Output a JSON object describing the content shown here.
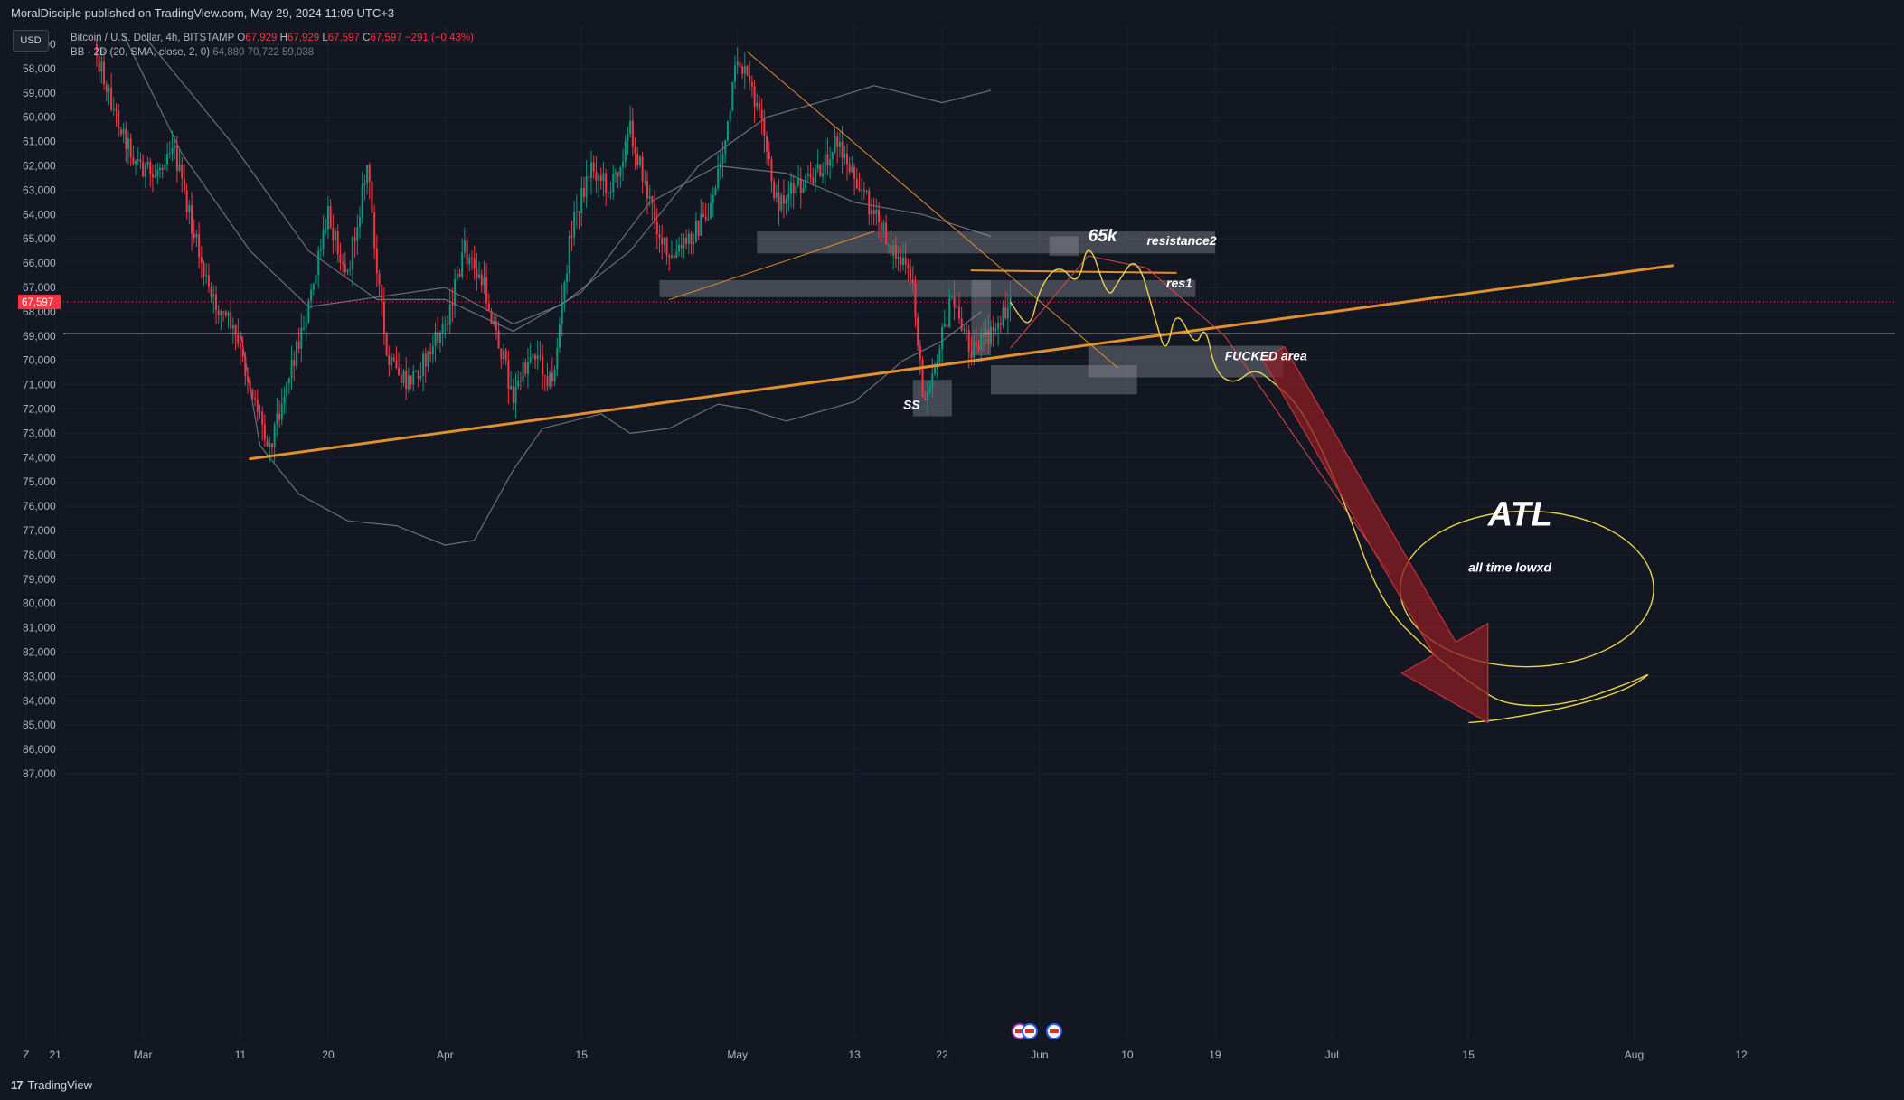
{
  "header": {
    "publisher_line": "MoralDisciple published on TradingView.com, May 29, 2024 11:09 UTC+3"
  },
  "footer": {
    "brand": "TradingView",
    "brand_mark": "17"
  },
  "currency_button": "USD",
  "legend": {
    "symbol": "Bitcoin / U.S. Dollar, 4h, BITSTAMP",
    "o_label": "O",
    "o_value": "67,929",
    "h_label": "H",
    "h_value": "67,929",
    "l_label": "L",
    "l_value": "67,597",
    "c_label": "C",
    "c_value": "67,597",
    "change": "−291 (−0.43%)",
    "bb_label": "BB · 2D (20, SMA, close, 2, 0)",
    "bb_upper": "64,880",
    "bb_basis": "70,722",
    "bb_lower": "59,038"
  },
  "colors": {
    "background": "#131722",
    "up_candle": "#089981",
    "down_candle": "#f23645",
    "trendline": "#e0902e",
    "drawing_yellow": "#e8d44d",
    "zone": "#9598a1",
    "arrow": "#8c1e24",
    "price_label_bg": "#f23645"
  },
  "chart_data": {
    "type": "candlestick",
    "symbol": "Bitcoin / U.S. Dollar",
    "interval": "4h",
    "exchange": "BITSTAMP",
    "y_axis": {
      "inverted": true,
      "ylim": [
        56600,
        87400
      ],
      "ticks": [
        57000,
        58000,
        59000,
        60000,
        61000,
        62000,
        63000,
        64000,
        65000,
        66000,
        67000,
        68000,
        69000,
        70000,
        71000,
        72000,
        73000,
        74000,
        75000,
        76000,
        77000,
        78000,
        79000,
        80000,
        81000,
        82000,
        83000,
        84000,
        85000,
        86000,
        87000
      ],
      "tick_labels": [
        "57,000",
        "58,000",
        "59,000",
        "60,000",
        "61,000",
        "62,000",
        "63,000",
        "64,000",
        "65,000",
        "66,000",
        "67,000",
        "68,000",
        "69,000",
        "70,000",
        "71,000",
        "72,000",
        "73,000",
        "74,000",
        "75,000",
        "76,000",
        "77,000",
        "78,000",
        "79,000",
        "80,000",
        "81,000",
        "82,000",
        "83,000",
        "84,000",
        "85,000",
        "86,000",
        "87,000"
      ]
    },
    "x_axis": {
      "start": "2024-02-17",
      "end": "2024-08-31",
      "tick_labels": [
        {
          "label": "Z",
          "date": "2024-02-18"
        },
        {
          "label": "21",
          "date": "2024-02-21"
        },
        {
          "label": "Mar",
          "date": "2024-03-01"
        },
        {
          "label": "11",
          "date": "2024-03-11"
        },
        {
          "label": "20",
          "date": "2024-03-20"
        },
        {
          "label": "Apr",
          "date": "2024-04-01"
        },
        {
          "label": "15",
          "date": "2024-04-15"
        },
        {
          "label": "May",
          "date": "2024-05-01"
        },
        {
          "label": "13",
          "date": "2024-05-13"
        },
        {
          "label": "22",
          "date": "2024-05-22"
        },
        {
          "label": "Jun",
          "date": "2024-06-01"
        },
        {
          "label": "10",
          "date": "2024-06-10"
        },
        {
          "label": "19",
          "date": "2024-06-19"
        },
        {
          "label": "Jul",
          "date": "2024-07-01"
        },
        {
          "label": "15",
          "date": "2024-07-15"
        },
        {
          "label": "Aug",
          "date": "2024-08-01"
        },
        {
          "label": "12",
          "date": "2024-08-12"
        }
      ]
    },
    "current_price": {
      "value": 67597,
      "label": "67,597"
    },
    "horizontal_line": 68900,
    "price_path": [
      [
        "2024-02-25",
        57000
      ],
      [
        "2024-02-27",
        59700
      ],
      [
        "2024-02-29",
        61600
      ],
      [
        "2024-03-02",
        62500
      ],
      [
        "2024-03-04",
        61000
      ],
      [
        "2024-03-06",
        64500
      ],
      [
        "2024-03-08",
        67500
      ],
      [
        "2024-03-10",
        68500
      ],
      [
        "2024-03-12",
        71000
      ],
      [
        "2024-03-14",
        73500
      ],
      [
        "2024-03-16",
        70500
      ],
      [
        "2024-03-18",
        67800
      ],
      [
        "2024-03-20",
        64000
      ],
      [
        "2024-03-22",
        66500
      ],
      [
        "2024-03-24",
        62000
      ],
      [
        "2024-03-26",
        70000
      ],
      [
        "2024-03-28",
        71000
      ],
      [
        "2024-03-30",
        70000
      ],
      [
        "2024-04-01",
        68500
      ],
      [
        "2024-04-03",
        65500
      ],
      [
        "2024-04-05",
        67000
      ],
      [
        "2024-04-08",
        71500
      ],
      [
        "2024-04-10",
        69500
      ],
      [
        "2024-04-12",
        71000
      ],
      [
        "2024-04-14",
        64500
      ],
      [
        "2024-04-16",
        62000
      ],
      [
        "2024-04-18",
        63000
      ],
      [
        "2024-04-20",
        60500
      ],
      [
        "2024-04-22",
        63500
      ],
      [
        "2024-04-24",
        66000
      ],
      [
        "2024-04-26",
        65000
      ],
      [
        "2024-04-28",
        64000
      ],
      [
        "2024-04-30",
        60500
      ],
      [
        "2024-05-01",
        57500
      ],
      [
        "2024-05-03",
        59500
      ],
      [
        "2024-05-05",
        63500
      ],
      [
        "2024-05-07",
        63000
      ],
      [
        "2024-05-09",
        62500
      ],
      [
        "2024-05-11",
        61000
      ],
      [
        "2024-05-13",
        62300
      ],
      [
        "2024-05-15",
        64000
      ],
      [
        "2024-05-17",
        65500
      ],
      [
        "2024-05-19",
        66800
      ],
      [
        "2024-05-20",
        71500
      ],
      [
        "2024-05-21",
        70500
      ],
      [
        "2024-05-23",
        67500
      ],
      [
        "2024-05-25",
        69500
      ],
      [
        "2024-05-27",
        69000
      ],
      [
        "2024-05-29",
        67600
      ]
    ],
    "bollinger_bands_2D": {
      "upper": [
        [
          "2024-02-28",
          56600
        ],
        [
          "2024-03-05",
          61500
        ],
        [
          "2024-03-12",
          65500
        ],
        [
          "2024-03-18",
          67800
        ],
        [
          "2024-03-25",
          67400
        ],
        [
          "2024-04-01",
          67000
        ],
        [
          "2024-04-08",
          68500
        ],
        [
          "2024-04-13",
          67700
        ],
        [
          "2024-04-20",
          65500
        ],
        [
          "2024-04-27",
          62000
        ],
        [
          "2024-05-04",
          60000
        ],
        [
          "2024-05-11",
          59200
        ],
        [
          "2024-05-15",
          58700
        ],
        [
          "2024-05-22",
          59400
        ],
        [
          "2024-05-27",
          58900
        ]
      ],
      "basis": [
        [
          "2024-03-01",
          56600
        ],
        [
          "2024-03-10",
          61000
        ],
        [
          "2024-03-18",
          65500
        ],
        [
          "2024-03-25",
          67500
        ],
        [
          "2024-04-01",
          67500
        ],
        [
          "2024-04-08",
          68800
        ],
        [
          "2024-04-15",
          67200
        ],
        [
          "2024-04-22",
          63500
        ],
        [
          "2024-04-29",
          62000
        ],
        [
          "2024-05-06",
          62300
        ],
        [
          "2024-05-13",
          63500
        ],
        [
          "2024-05-20",
          64000
        ],
        [
          "2024-05-27",
          64900
        ]
      ],
      "lower": [
        [
          "2024-03-11",
          68800
        ],
        [
          "2024-03-13",
          73500
        ],
        [
          "2024-03-17",
          75500
        ],
        [
          "2024-03-22",
          76600
        ],
        [
          "2024-03-27",
          76800
        ],
        [
          "2024-04-01",
          77600
        ],
        [
          "2024-04-04",
          77400
        ],
        [
          "2024-04-08",
          74500
        ],
        [
          "2024-04-11",
          72800
        ],
        [
          "2024-04-17",
          72200
        ],
        [
          "2024-04-20",
          73000
        ],
        [
          "2024-04-24",
          72800
        ],
        [
          "2024-04-29",
          71800
        ],
        [
          "2024-05-02",
          72000
        ],
        [
          "2024-05-06",
          72500
        ],
        [
          "2024-05-13",
          71700
        ],
        [
          "2024-05-18",
          70000
        ],
        [
          "2024-05-22",
          69200
        ],
        [
          "2024-05-26",
          68000
        ]
      ]
    },
    "trendlines": [
      {
        "from": [
          "2024-03-12",
          74050
        ],
        "to": [
          "2024-08-05",
          66100
        ],
        "color": "#e0902e",
        "width": 3
      },
      {
        "from": [
          "2024-05-02",
          57300
        ],
        "to": [
          "2024-06-09",
          70300
        ],
        "color": "#e0902e",
        "width": 1
      },
      {
        "from": [
          "2024-04-24",
          67500
        ],
        "to": [
          "2024-05-15",
          64700
        ],
        "color": "#e0902e",
        "width": 1
      },
      {
        "from": [
          "2024-05-25",
          66300
        ],
        "to": [
          "2024-06-15",
          66400
        ],
        "color": "#e0902e",
        "width": 2
      }
    ],
    "zones": [
      {
        "from": "2024-05-03",
        "to": "2024-06-19",
        "top": 64700,
        "bottom": 65600
      },
      {
        "from": "2024-04-23",
        "to": "2024-06-17",
        "top": 66700,
        "bottom": 67400
      },
      {
        "from": "2024-06-06",
        "to": "2024-06-26",
        "top": 69400,
        "bottom": 70700
      },
      {
        "from": "2024-05-27",
        "to": "2024-06-11",
        "top": 70200,
        "bottom": 71400
      },
      {
        "from": "2024-05-19",
        "to": "2024-05-23",
        "top": 70800,
        "bottom": 72300
      },
      {
        "from": "2024-05-25",
        "to": "2024-05-27",
        "top": 66700,
        "bottom": 69800
      },
      {
        "from": "2024-06-02",
        "to": "2024-06-05",
        "top": 64900,
        "bottom": 65700
      }
    ],
    "annotations": [
      {
        "text": "65k",
        "date": "2024-06-06",
        "price": 65100
      },
      {
        "text": "resistance2",
        "date": "2024-06-12",
        "price": 65250
      },
      {
        "text": "res1",
        "date": "2024-06-14",
        "price": 67000
      },
      {
        "text": "FUCKED area",
        "date": "2024-06-20",
        "price": 70000
      },
      {
        "text": "SS",
        "date": "2024-05-18",
        "price": 72000
      },
      {
        "text": "ATL",
        "date": "2024-07-17",
        "price": 76800
      },
      {
        "text": "all time lowxd",
        "date": "2024-07-15",
        "price": 78700
      }
    ],
    "projection_path": [
      [
        "2024-05-29",
        67600
      ],
      [
        "2024-05-31",
        68800
      ],
      [
        "2024-06-01",
        67000
      ],
      [
        "2024-06-03",
        66000
      ],
      [
        "2024-06-05",
        67000
      ],
      [
        "2024-06-06",
        64900
      ],
      [
        "2024-06-08",
        67500
      ],
      [
        "2024-06-09",
        66800
      ],
      [
        "2024-06-11",
        65600
      ],
      [
        "2024-06-13",
        68500
      ],
      [
        "2024-06-14",
        69800
      ],
      [
        "2024-06-15",
        67800
      ],
      [
        "2024-06-17",
        69500
      ],
      [
        "2024-06-18",
        68500
      ],
      [
        "2024-06-19",
        70500
      ],
      [
        "2024-06-21",
        71000
      ],
      [
        "2024-06-23",
        70300
      ],
      [
        "2024-06-25",
        70900
      ],
      [
        "2024-06-28",
        72000
      ],
      [
        "2024-07-02",
        75500
      ],
      [
        "2024-07-06",
        80000
      ],
      [
        "2024-07-11",
        82000
      ],
      [
        "2024-07-16",
        83500
      ],
      [
        "2024-07-19",
        84200
      ],
      [
        "2024-07-25",
        84200
      ],
      [
        "2024-08-01",
        83200
      ],
      [
        "2024-08-03",
        82800
      ],
      [
        "2024-07-31",
        83600
      ],
      [
        "2024-07-25",
        84300
      ],
      [
        "2024-07-18",
        84800
      ],
      [
        "2024-07-15",
        84900
      ]
    ],
    "projection_arrow": {
      "from": [
        "2024-06-25",
        69700
      ],
      "to": [
        "2024-07-17",
        84900
      ],
      "color": "#8c1e24"
    },
    "red_thin_line": [
      [
        "2024-05-29",
        69500
      ],
      [
        "2024-06-06",
        65700
      ],
      [
        "2024-06-12",
        66200
      ],
      [
        "2024-06-20",
        69000
      ],
      [
        "2024-07-07",
        78800
      ]
    ],
    "atl_ellipse": {
      "center": [
        "2024-07-21",
        79400
      ],
      "date_radius_days": 13,
      "price_radius": 3200
    },
    "event_markers_date": "2024-06-01"
  }
}
